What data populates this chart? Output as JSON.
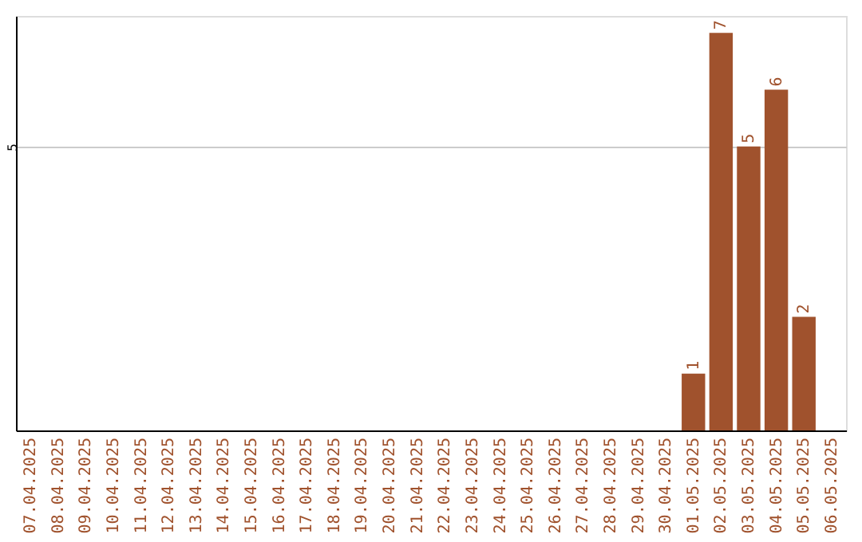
{
  "chart_data": {
    "type": "bar",
    "categories": [
      "07.04.2025",
      "08.04.2025",
      "09.04.2025",
      "10.04.2025",
      "11.04.2025",
      "12.04.2025",
      "13.04.2025",
      "14.04.2025",
      "15.04.2025",
      "16.04.2025",
      "17.04.2025",
      "18.04.2025",
      "19.04.2025",
      "20.04.2025",
      "21.04.2025",
      "22.04.2025",
      "23.04.2025",
      "24.04.2025",
      "25.04.2025",
      "26.04.2025",
      "27.04.2025",
      "28.04.2025",
      "29.04.2025",
      "30.04.2025",
      "01.05.2025",
      "02.05.2025",
      "03.05.2025",
      "04.05.2025",
      "05.05.2025",
      "06.05.2025"
    ],
    "values": [
      null,
      null,
      null,
      null,
      null,
      null,
      null,
      null,
      null,
      null,
      null,
      null,
      null,
      null,
      null,
      null,
      null,
      null,
      null,
      null,
      null,
      null,
      null,
      null,
      1,
      7,
      5,
      6,
      2,
      null
    ],
    "color": "#a0522d",
    "ylim": [
      0,
      7.3
    ],
    "yticks": [
      5
    ],
    "grid": "y",
    "data_labels": true
  }
}
